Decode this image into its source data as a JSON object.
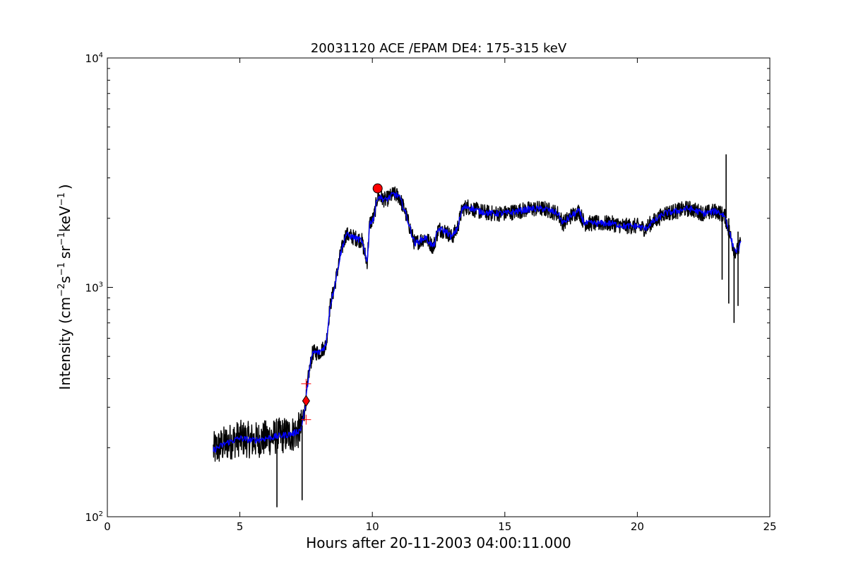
{
  "chart_data": {
    "type": "line",
    "title": "20031120 ACE /EPAM DE4: 175-315 keV",
    "xlabel": "Hours after 20-11-2003 04:00:11.000",
    "ylabel": {
      "prefix": "Intensity (cm",
      "exp1": "−2",
      "mid1": "s",
      "exp2": "−1",
      "mid2": "sr",
      "exp3": "−1",
      "mid3": "keV",
      "exp4": "−1",
      "suffix": ")"
    },
    "xlim": [
      0,
      25
    ],
    "ylim": [
      100,
      10000
    ],
    "yscale": "log",
    "x_ticks": [
      0,
      5,
      10,
      15,
      20,
      25
    ],
    "x_tick_labels": [
      "0",
      "5",
      "10",
      "15",
      "20",
      "25"
    ],
    "y_ticks": [
      100,
      1000,
      10000
    ],
    "y_tick_labels": [
      {
        "base": "10",
        "exp": "2"
      },
      {
        "base": "10",
        "exp": "3"
      },
      {
        "base": "10",
        "exp": "4"
      }
    ],
    "series": [
      {
        "role": "raw",
        "color": "#000000",
        "x": [
          4.0,
          4.5,
          5.0,
          5.5,
          6.0,
          6.5,
          7.0,
          7.3,
          7.45,
          7.6,
          7.75,
          8.0,
          8.25,
          8.4,
          8.6,
          8.8,
          9.0,
          9.3,
          9.6,
          9.8,
          9.9,
          10.05,
          10.2,
          10.5,
          10.8,
          11.0,
          11.2,
          11.4,
          11.6,
          12.0,
          12.3,
          12.5,
          12.8,
          13.0,
          13.2,
          13.4,
          13.6,
          14.0,
          14.5,
          15.0,
          15.5,
          16.0,
          16.5,
          17.0,
          17.2,
          17.5,
          17.8,
          18.0,
          18.5,
          19.0,
          19.5,
          20.0,
          20.3,
          20.5,
          20.8,
          21.0,
          21.5,
          21.8,
          22.0,
          22.5,
          23.0,
          23.3,
          23.5,
          23.65,
          23.8,
          23.9
        ],
        "y": [
          195,
          210,
          220,
          215,
          220,
          225,
          230,
          240,
          290,
          420,
          520,
          520,
          560,
          820,
          1050,
          1400,
          1700,
          1650,
          1600,
          1280,
          1900,
          2000,
          2500,
          2400,
          2550,
          2500,
          2200,
          1850,
          1550,
          1650,
          1500,
          1800,
          1750,
          1650,
          1800,
          2200,
          2250,
          2150,
          2100,
          2100,
          2150,
          2200,
          2200,
          2100,
          1900,
          2050,
          2150,
          1900,
          1900,
          1900,
          1850,
          1850,
          1800,
          1900,
          2000,
          2100,
          2150,
          2200,
          2200,
          2100,
          2150,
          2050,
          1700,
          1450,
          1450,
          1550
        ]
      },
      {
        "role": "smoothed",
        "color": "#0000ff",
        "x": [
          4.0,
          4.5,
          5.0,
          5.5,
          6.0,
          6.5,
          7.0,
          7.3,
          7.45,
          7.6,
          7.75,
          8.0,
          8.25,
          8.4,
          8.6,
          8.8,
          9.0,
          9.3,
          9.6,
          9.8,
          9.9,
          10.05,
          10.2,
          10.5,
          10.8,
          11.0,
          11.2,
          11.4,
          11.6,
          12.0,
          12.3,
          12.5,
          12.8,
          13.0,
          13.2,
          13.4,
          13.6,
          14.0,
          14.5,
          15.0,
          15.5,
          16.0,
          16.5,
          17.0,
          17.2,
          17.5,
          17.8,
          18.0,
          18.5,
          19.0,
          19.5,
          20.0,
          20.3,
          20.5,
          20.8,
          21.0,
          21.5,
          21.8,
          22.0,
          22.5,
          23.0,
          23.3,
          23.5,
          23.65,
          23.8,
          23.9
        ],
        "y": [
          195,
          210,
          220,
          215,
          220,
          225,
          230,
          240,
          290,
          420,
          520,
          520,
          560,
          820,
          1050,
          1400,
          1700,
          1650,
          1600,
          1280,
          1900,
          2000,
          2500,
          2400,
          2550,
          2500,
          2200,
          1850,
          1550,
          1650,
          1500,
          1800,
          1750,
          1650,
          1800,
          2200,
          2250,
          2150,
          2100,
          2100,
          2150,
          2200,
          2200,
          2100,
          1900,
          2050,
          2150,
          1900,
          1900,
          1900,
          1850,
          1850,
          1800,
          1900,
          2000,
          2100,
          2150,
          2200,
          2200,
          2100,
          2150,
          2050,
          1700,
          1450,
          1450,
          1550
        ]
      }
    ],
    "spikes": [
      {
        "x": 6.4,
        "y_top": 200,
        "y_bottom": 110
      },
      {
        "x": 7.35,
        "y_top": 250,
        "y_bottom": 118
      },
      {
        "x": 23.2,
        "y_top": 2000,
        "y_bottom": 1080
      },
      {
        "x": 23.35,
        "y_top": 3800,
        "y_bottom": 2000
      },
      {
        "x": 23.45,
        "y_top": 2000,
        "y_bottom": 850
      },
      {
        "x": 23.65,
        "y_top": 1500,
        "y_bottom": 700
      },
      {
        "x": 23.8,
        "y_top": 1750,
        "y_bottom": 830
      }
    ],
    "markers": [
      {
        "shape": "circle",
        "x": 10.2,
        "y": 2700,
        "color": "#ff0000"
      },
      {
        "shape": "diamond",
        "x": 7.5,
        "y": 320,
        "color": "#ff0000"
      },
      {
        "shape": "plus",
        "x": 7.5,
        "y": 380,
        "color": "#ff0000"
      },
      {
        "shape": "plus",
        "x": 7.5,
        "y": 265,
        "color": "#ff0000"
      }
    ],
    "grid": false,
    "legend": "none"
  }
}
